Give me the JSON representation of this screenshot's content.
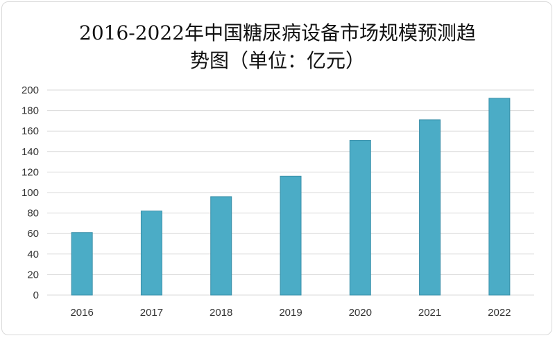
{
  "chart_data": {
    "type": "bar",
    "title": "2016-2022年中国糖尿病设备市场规模预测趋势图（单位：亿元）",
    "title_lines": [
      "2016-2022年中国糖尿病设备市场规模预测趋",
      "势图（单位：亿元）"
    ],
    "categories": [
      "2016",
      "2017",
      "2018",
      "2019",
      "2020",
      "2021",
      "2022"
    ],
    "values": [
      61,
      82,
      96,
      116,
      151,
      171,
      192
    ],
    "ylim": [
      0,
      200
    ],
    "yticks": [
      "0",
      "20",
      "40",
      "60",
      "80",
      "100",
      "120",
      "140",
      "160",
      "180",
      "200"
    ],
    "grid": true,
    "bar_color": "#4bacc6",
    "bar_edge_color": "#3a8fa8",
    "grid_color": "#d9d9d9"
  }
}
